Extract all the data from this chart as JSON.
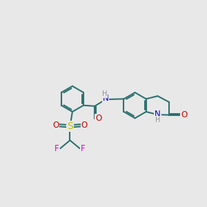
{
  "bg_color": "#e8e8e8",
  "bond_color": "#2d7070",
  "bond_width": 1.5,
  "S_color": "#c0c000",
  "O_color": "#cc0000",
  "N_color": "#0000cc",
  "F_color": "#dd00dd",
  "H_color": "#909090",
  "font_size_atom": 8.5,
  "font_size_h": 7.0,
  "xlim": [
    0.0,
    10.0
  ],
  "ylim": [
    -2.0,
    7.5
  ]
}
